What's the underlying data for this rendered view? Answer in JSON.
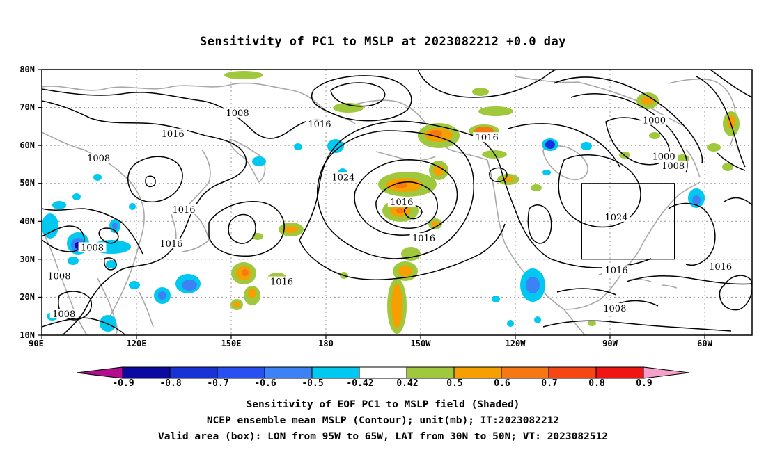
{
  "title": "Sensitivity of PC1 to MSLP at 2023082212 +0.0 day",
  "lat_labels": [
    "80N",
    "70N",
    "60N",
    "50N",
    "40N",
    "30N",
    "20N",
    "10N"
  ],
  "lon_labels": [
    "90E",
    "120E",
    "150E",
    "180",
    "150W",
    "120W",
    "90W",
    "60W"
  ],
  "contour_labels": [
    {
      "text": "1008",
      "lon": 152,
      "lat": 68.5
    },
    {
      "text": "1016",
      "lon": 131.5,
      "lat": 63
    },
    {
      "text": "1008",
      "lon": 108,
      "lat": 56.5
    },
    {
      "text": "1016",
      "lon": 135,
      "lat": 43
    },
    {
      "text": "1016",
      "lon": 131,
      "lat": 34
    },
    {
      "text": "1008",
      "lon": 106,
      "lat": 33
    },
    {
      "text": "1008",
      "lon": 95.5,
      "lat": 25.5
    },
    {
      "text": "1008",
      "lon": 97,
      "lat": 15.5
    },
    {
      "text": "1016",
      "lon": 178,
      "lat": 65.5
    },
    {
      "text": "1024",
      "lon": 185.5,
      "lat": 51.5
    },
    {
      "text": "1016",
      "lon": 204,
      "lat": 45
    },
    {
      "text": "1016",
      "lon": 211,
      "lat": 35.5
    },
    {
      "text": "1016",
      "lon": 166,
      "lat": 24
    },
    {
      "text": "1016",
      "lon": 231,
      "lat": 62
    },
    {
      "text": "1000",
      "lon": 284,
      "lat": 66.5
    },
    {
      "text": "1000",
      "lon": 287,
      "lat": 57
    },
    {
      "text": "1008",
      "lon": 290,
      "lat": 54.5
    },
    {
      "text": "1024",
      "lon": 272,
      "lat": 41
    },
    {
      "text": "1016",
      "lon": 272,
      "lat": 27
    },
    {
      "text": "1008",
      "lon": 271.5,
      "lat": 17
    },
    {
      "text": "1016",
      "lon": 305,
      "lat": 28
    }
  ],
  "valid_box": {
    "lon_min": 265,
    "lon_max": 295,
    "lat_min": 30,
    "lat_max": 50
  },
  "colorbar": {
    "labels": [
      "-0.9",
      "-0.8",
      "-0.7",
      "-0.6",
      "-0.5",
      "-0.42",
      "0.42",
      "0.5",
      "0.6",
      "0.7",
      "0.8",
      "0.9"
    ],
    "colors": [
      "#b40e8e",
      "#0a0aa0",
      "#1932d6",
      "#2850f0",
      "#3c82f5",
      "#00c8f0",
      "#ffffff",
      "#a0c83c",
      "#f5a000",
      "#f57814",
      "#f54614",
      "#f01414",
      "#f5a0c8"
    ]
  },
  "captions": [
    "Sensitivity of EOF PC1 to MSLP field (Shaded)",
    "NCEP ensemble mean MSLP (Contour); unit(mb); IT:2023082212",
    "Valid area (box): LON from 95W to 65W, LAT from 30N to 50N; VT: 2023082512"
  ]
}
